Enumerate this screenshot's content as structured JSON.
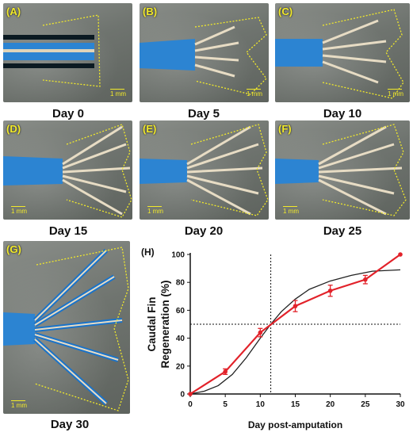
{
  "panels": [
    {
      "label": "(A)",
      "caption": "Day 0",
      "scale": "1 mm"
    },
    {
      "label": "(B)",
      "caption": "Day 5",
      "scale": "1 mm"
    },
    {
      "label": "(C)",
      "caption": "Day 10",
      "scale": "1 mm"
    },
    {
      "label": "(D)",
      "caption": "Day 15",
      "scale": "1 mm"
    },
    {
      "label": "(E)",
      "caption": "Day 20",
      "scale": "1 mm"
    },
    {
      "label": "(F)",
      "caption": "Day 25",
      "scale": "1 mm"
    },
    {
      "label": "(G)",
      "caption": "Day 30",
      "scale": "1 mm"
    }
  ],
  "colors": {
    "outline": "#f2ea2a",
    "fin_blue": "#1a73c9",
    "fin_ray": "#e7dcc4",
    "data": "#e2222a",
    "fit": "#222222"
  },
  "chart_data": {
    "type": "line",
    "panel_label": "(H)",
    "xlabel": "Day post-amputation",
    "ylabel": "Caudal Fin Regeneration (%)",
    "xlim": [
      0,
      30
    ],
    "ylim": [
      0,
      100
    ],
    "xticks": [
      "0",
      "5",
      "10",
      "15",
      "20",
      "25",
      "30"
    ],
    "yticks": [
      "0",
      "20",
      "40",
      "60",
      "80",
      "100"
    ],
    "series": [
      {
        "x": [
          0,
          5,
          10,
          15,
          20,
          25,
          30
        ],
        "values": [
          0,
          16,
          44,
          63,
          74,
          82,
          100
        ],
        "error": [
          0,
          2,
          3,
          4,
          4,
          3,
          0
        ]
      }
    ],
    "fit_curve": {
      "x": [
        0,
        2,
        4,
        6,
        8,
        10,
        11.5,
        13,
        15,
        17,
        20,
        23,
        26,
        30
      ],
      "values": [
        0,
        2,
        6,
        14,
        26,
        40,
        50,
        59,
        68,
        75,
        81,
        85,
        88,
        89
      ]
    },
    "reference_lines": {
      "x": 11.5,
      "y": 50
    }
  }
}
